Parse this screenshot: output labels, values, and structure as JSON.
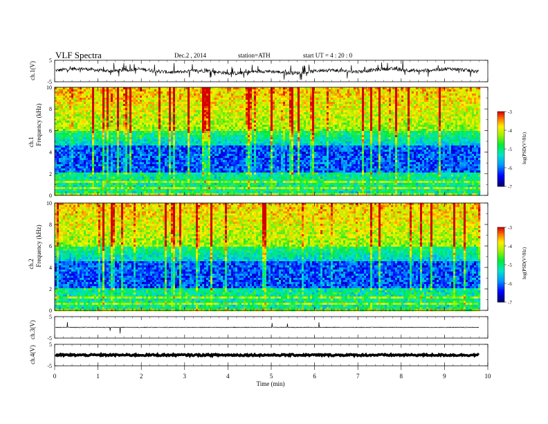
{
  "header": {
    "title": "VLF  Spectra",
    "date": "Dec.2 , 2014",
    "station": "station=ATH",
    "start": "start  UT  =  4 : 20 : 0"
  },
  "chart_data": [
    {
      "type": "line",
      "id": "ch1-waveform",
      "ylabel": "ch.1(V)",
      "y_ticks": [
        "5",
        "-5"
      ],
      "ylim": [
        -5,
        5
      ],
      "xlim": [
        0,
        10
      ],
      "data_end_min": 9.8
    },
    {
      "type": "heatmap",
      "id": "ch1-spectrogram",
      "ylabel_channel": "ch.1",
      "ylabel": "Frequency  (kHz)",
      "y_ticks": [
        "0",
        "2",
        "4",
        "6",
        "8",
        "10"
      ],
      "ylim": [
        0,
        10
      ],
      "xlim": [
        0,
        10
      ],
      "data_end_min": 9.8,
      "colorbar": {
        "label": "log(PSD(V²/Hz)",
        "ticks": [
          "-3",
          "-4",
          "-5",
          "-6",
          "-7"
        ],
        "range": [
          -7,
          -3
        ]
      }
    },
    {
      "type": "heatmap",
      "id": "ch2-spectrogram",
      "ylabel_channel": "ch.2",
      "ylabel": "Frequency  (kHz)",
      "y_ticks": [
        "0",
        "2",
        "4",
        "6",
        "8",
        "10"
      ],
      "ylim": [
        0,
        10
      ],
      "xlim": [
        0,
        10
      ],
      "data_end_min": 9.8,
      "colorbar": {
        "label": "log(PSD(V²/Hz)",
        "ticks": [
          "-3",
          "-4",
          "-5",
          "-6",
          "-7"
        ],
        "range": [
          -7,
          -3
        ]
      }
    },
    {
      "type": "line",
      "id": "ch3-waveform",
      "ylabel": "ch.3(V)",
      "y_ticks": [
        "5",
        "-5"
      ],
      "ylim": [
        -5,
        5
      ],
      "xlim": [
        0,
        10
      ],
      "data_end_min": 9.8
    },
    {
      "type": "line",
      "id": "ch4-waveform",
      "ylabel": "ch.4(V)",
      "y_ticks": [
        "5",
        "-5"
      ],
      "ylim": [
        -5,
        5
      ],
      "xlim": [
        0,
        10
      ],
      "data_end_min": 9.8
    }
  ],
  "x_axis": {
    "label": "Time  (min)",
    "ticks": [
      "0",
      "1",
      "2",
      "3",
      "4",
      "5",
      "6",
      "7",
      "8",
      "9",
      "10"
    ]
  }
}
